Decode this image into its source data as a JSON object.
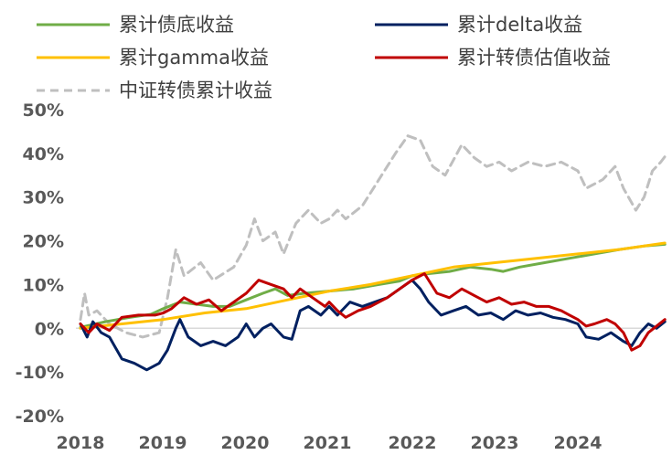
{
  "chart_data": {
    "type": "line",
    "title": "",
    "xlabel": "",
    "ylabel": "",
    "x_ticks": [
      "2018",
      "2019",
      "2020",
      "2021",
      "2022",
      "2023",
      "2024"
    ],
    "y_ticks": [
      "50%",
      "40%",
      "30%",
      "20%",
      "10%",
      "0%",
      "-10%",
      "-20%"
    ],
    "y_tick_values": [
      50,
      40,
      30,
      20,
      10,
      0,
      -10,
      -20
    ],
    "ylim": [
      -20,
      50
    ],
    "xlim": [
      2018.0,
      2025.1
    ],
    "grid": false,
    "legend_position": "top",
    "series": [
      {
        "name": "累计债底收益",
        "color": "#70AD47",
        "dash": "solid",
        "points": [
          [
            2018.0,
            0.2
          ],
          [
            2018.3,
            1.5
          ],
          [
            2018.6,
            2.5
          ],
          [
            2018.85,
            3.2
          ],
          [
            2019.0,
            4.5
          ],
          [
            2019.2,
            6.0
          ],
          [
            2019.4,
            5.5
          ],
          [
            2019.6,
            5.0
          ],
          [
            2019.8,
            5.0
          ],
          [
            2020.0,
            6.5
          ],
          [
            2020.2,
            8.0
          ],
          [
            2020.35,
            9.0
          ],
          [
            2020.5,
            7.5
          ],
          [
            2020.7,
            8.0
          ],
          [
            2021.0,
            8.5
          ],
          [
            2021.3,
            9.0
          ],
          [
            2021.6,
            10.0
          ],
          [
            2021.85,
            10.8
          ],
          [
            2022.0,
            12.0
          ],
          [
            2022.2,
            12.5
          ],
          [
            2022.45,
            13.0
          ],
          [
            2022.7,
            14.0
          ],
          [
            2022.95,
            13.5
          ],
          [
            2023.1,
            13.0
          ],
          [
            2023.3,
            14.0
          ],
          [
            2023.6,
            15.0
          ],
          [
            2023.9,
            16.0
          ],
          [
            2024.2,
            17.0
          ],
          [
            2024.5,
            18.0
          ],
          [
            2024.8,
            18.8
          ],
          [
            2025.05,
            19.2
          ]
        ]
      },
      {
        "name": "累计gamma收益",
        "color": "#FFC000",
        "dash": "solid",
        "points": [
          [
            2018.0,
            0.0
          ],
          [
            2018.5,
            1.0
          ],
          [
            2019.0,
            2.0
          ],
          [
            2019.5,
            3.5
          ],
          [
            2020.0,
            4.5
          ],
          [
            2020.5,
            6.5
          ],
          [
            2021.0,
            8.5
          ],
          [
            2021.5,
            10.0
          ],
          [
            2022.0,
            12.0
          ],
          [
            2022.5,
            14.0
          ],
          [
            2023.0,
            15.0
          ],
          [
            2023.5,
            16.0
          ],
          [
            2024.0,
            17.0
          ],
          [
            2024.5,
            18.0
          ],
          [
            2025.05,
            19.5
          ]
        ]
      },
      {
        "name": "中证转债累计收益",
        "color": "#BFBFBF",
        "dash": "dashed",
        "points": [
          [
            2018.0,
            2.0
          ],
          [
            2018.05,
            8.0
          ],
          [
            2018.1,
            3.0
          ],
          [
            2018.2,
            4.0
          ],
          [
            2018.35,
            1.0
          ],
          [
            2018.55,
            -1.0
          ],
          [
            2018.75,
            -2.0
          ],
          [
            2018.95,
            -1.0
          ],
          [
            2019.05,
            7.0
          ],
          [
            2019.15,
            18.0
          ],
          [
            2019.25,
            12.0
          ],
          [
            2019.45,
            15.0
          ],
          [
            2019.6,
            11.0
          ],
          [
            2019.85,
            14.0
          ],
          [
            2020.0,
            19.0
          ],
          [
            2020.1,
            25.0
          ],
          [
            2020.2,
            20.0
          ],
          [
            2020.35,
            22.0
          ],
          [
            2020.45,
            17.0
          ],
          [
            2020.6,
            24.0
          ],
          [
            2020.75,
            27.0
          ],
          [
            2020.9,
            24.0
          ],
          [
            2021.0,
            25.0
          ],
          [
            2021.1,
            27.0
          ],
          [
            2021.2,
            25.0
          ],
          [
            2021.4,
            28.0
          ],
          [
            2021.6,
            34.0
          ],
          [
            2021.8,
            40.0
          ],
          [
            2021.95,
            44.0
          ],
          [
            2022.1,
            43.0
          ],
          [
            2022.25,
            37.0
          ],
          [
            2022.4,
            35.0
          ],
          [
            2022.6,
            42.0
          ],
          [
            2022.75,
            39.0
          ],
          [
            2022.9,
            37.0
          ],
          [
            2023.05,
            38.0
          ],
          [
            2023.2,
            36.0
          ],
          [
            2023.4,
            38.0
          ],
          [
            2023.6,
            37.0
          ],
          [
            2023.8,
            38.0
          ],
          [
            2024.0,
            36.0
          ],
          [
            2024.1,
            32.0
          ],
          [
            2024.3,
            34.0
          ],
          [
            2024.45,
            37.0
          ],
          [
            2024.55,
            32.0
          ],
          [
            2024.7,
            27.0
          ],
          [
            2024.8,
            30.0
          ],
          [
            2024.9,
            36.0
          ],
          [
            2025.0,
            38.0
          ],
          [
            2025.08,
            40.0
          ]
        ]
      },
      {
        "name": "累计delta收益",
        "color": "#002060",
        "dash": "solid",
        "points": [
          [
            2018.0,
            1.0
          ],
          [
            2018.08,
            -2.0
          ],
          [
            2018.15,
            1.5
          ],
          [
            2018.25,
            -1.0
          ],
          [
            2018.35,
            -2.0
          ],
          [
            2018.5,
            -7.0
          ],
          [
            2018.65,
            -8.0
          ],
          [
            2018.8,
            -9.5
          ],
          [
            2018.95,
            -8.0
          ],
          [
            2019.05,
            -5.0
          ],
          [
            2019.15,
            0.0
          ],
          [
            2019.2,
            2.0
          ],
          [
            2019.3,
            -2.0
          ],
          [
            2019.45,
            -4.0
          ],
          [
            2019.6,
            -3.0
          ],
          [
            2019.75,
            -4.0
          ],
          [
            2019.9,
            -2.0
          ],
          [
            2020.0,
            1.0
          ],
          [
            2020.1,
            -2.0
          ],
          [
            2020.2,
            0.0
          ],
          [
            2020.3,
            1.0
          ],
          [
            2020.45,
            -2.0
          ],
          [
            2020.55,
            -2.5
          ],
          [
            2020.65,
            4.0
          ],
          [
            2020.75,
            5.0
          ],
          [
            2020.9,
            3.0
          ],
          [
            2021.0,
            5.0
          ],
          [
            2021.1,
            3.0
          ],
          [
            2021.25,
            6.0
          ],
          [
            2021.4,
            5.0
          ],
          [
            2021.55,
            6.0
          ],
          [
            2021.7,
            7.0
          ],
          [
            2021.85,
            9.0
          ],
          [
            2022.0,
            11.0
          ],
          [
            2022.1,
            9.0
          ],
          [
            2022.2,
            6.0
          ],
          [
            2022.35,
            3.0
          ],
          [
            2022.5,
            4.0
          ],
          [
            2022.65,
            5.0
          ],
          [
            2022.8,
            3.0
          ],
          [
            2022.95,
            3.5
          ],
          [
            2023.1,
            2.0
          ],
          [
            2023.25,
            4.0
          ],
          [
            2023.4,
            3.0
          ],
          [
            2023.55,
            3.5
          ],
          [
            2023.7,
            2.5
          ],
          [
            2023.85,
            2.0
          ],
          [
            2024.0,
            1.0
          ],
          [
            2024.1,
            -2.0
          ],
          [
            2024.25,
            -2.5
          ],
          [
            2024.4,
            -1.0
          ],
          [
            2024.55,
            -3.0
          ],
          [
            2024.65,
            -4.0
          ],
          [
            2024.75,
            -1.0
          ],
          [
            2024.85,
            1.0
          ],
          [
            2024.95,
            0.0
          ],
          [
            2025.05,
            1.5
          ]
        ]
      },
      {
        "name": "累计转债估值收益",
        "color": "#C00000",
        "dash": "solid",
        "points": [
          [
            2018.0,
            1.0
          ],
          [
            2018.1,
            -1.0
          ],
          [
            2018.2,
            1.0
          ],
          [
            2018.35,
            -0.5
          ],
          [
            2018.5,
            2.5
          ],
          [
            2018.7,
            3.0
          ],
          [
            2018.9,
            3.0
          ],
          [
            2019.0,
            3.5
          ],
          [
            2019.1,
            4.5
          ],
          [
            2019.25,
            7.0
          ],
          [
            2019.4,
            5.5
          ],
          [
            2019.55,
            6.5
          ],
          [
            2019.7,
            4.0
          ],
          [
            2019.85,
            6.0
          ],
          [
            2020.0,
            8.0
          ],
          [
            2020.15,
            11.0
          ],
          [
            2020.3,
            10.0
          ],
          [
            2020.45,
            9.0
          ],
          [
            2020.55,
            7.0
          ],
          [
            2020.65,
            9.0
          ],
          [
            2020.8,
            7.0
          ],
          [
            2020.95,
            5.0
          ],
          [
            2021.0,
            6.0
          ],
          [
            2021.1,
            4.0
          ],
          [
            2021.2,
            2.5
          ],
          [
            2021.35,
            4.0
          ],
          [
            2021.5,
            5.0
          ],
          [
            2021.7,
            7.0
          ],
          [
            2021.85,
            9.0
          ],
          [
            2022.0,
            11.0
          ],
          [
            2022.15,
            12.5
          ],
          [
            2022.3,
            8.0
          ],
          [
            2022.45,
            7.0
          ],
          [
            2022.6,
            9.0
          ],
          [
            2022.75,
            7.5
          ],
          [
            2022.9,
            6.0
          ],
          [
            2023.05,
            7.0
          ],
          [
            2023.2,
            5.5
          ],
          [
            2023.35,
            6.0
          ],
          [
            2023.5,
            5.0
          ],
          [
            2023.65,
            5.0
          ],
          [
            2023.8,
            4.0
          ],
          [
            2023.9,
            3.0
          ],
          [
            2024.0,
            2.0
          ],
          [
            2024.1,
            0.5
          ],
          [
            2024.2,
            1.0
          ],
          [
            2024.35,
            2.0
          ],
          [
            2024.45,
            1.0
          ],
          [
            2024.55,
            -1.0
          ],
          [
            2024.65,
            -5.0
          ],
          [
            2024.75,
            -4.0
          ],
          [
            2024.85,
            -1.0
          ],
          [
            2024.95,
            0.5
          ],
          [
            2025.05,
            2.0
          ]
        ]
      }
    ],
    "legend": [
      {
        "label": "累计债底收益",
        "series_index": 0
      },
      {
        "label": "累计delta收益",
        "series_index": 3
      },
      {
        "label": "累计gamma收益",
        "series_index": 1
      },
      {
        "label": "累计转债估值收益",
        "series_index": 4
      },
      {
        "label": "中证转债累计收益",
        "series_index": 2
      }
    ]
  }
}
